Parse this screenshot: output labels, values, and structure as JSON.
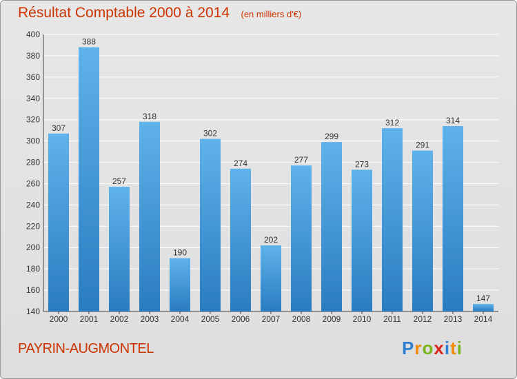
{
  "title": "Résultat Comptable 2000 à 2014",
  "unit_note": "(en milliers d'€)",
  "commune": "PAYRIN-AUGMONTEL",
  "logo": {
    "letters": [
      "P",
      "r",
      "o",
      "x",
      "i",
      "t",
      "i"
    ],
    "colors": [
      "#2f7fd1",
      "#f08a00",
      "#79b51c",
      "#d8261c",
      "#2f7fd1",
      "#f08a00",
      "#79b51c"
    ]
  },
  "colors": {
    "bar_top": "#5fb2ea",
    "bar_bottom": "#2a7cc0",
    "title": "#cc3300"
  },
  "chart_data": {
    "type": "bar",
    "categories": [
      "2000",
      "2001",
      "2002",
      "2003",
      "2004",
      "2005",
      "2006",
      "2007",
      "2008",
      "2009",
      "2010",
      "2011",
      "2012",
      "2013",
      "2014"
    ],
    "values": [
      307,
      388,
      257,
      318,
      190,
      302,
      274,
      202,
      277,
      299,
      273,
      312,
      291,
      314,
      147
    ],
    "ylim": [
      140,
      400
    ],
    "yticks": [
      140,
      160,
      180,
      200,
      220,
      240,
      260,
      280,
      300,
      320,
      340,
      360,
      380,
      400
    ],
    "grid": true
  }
}
